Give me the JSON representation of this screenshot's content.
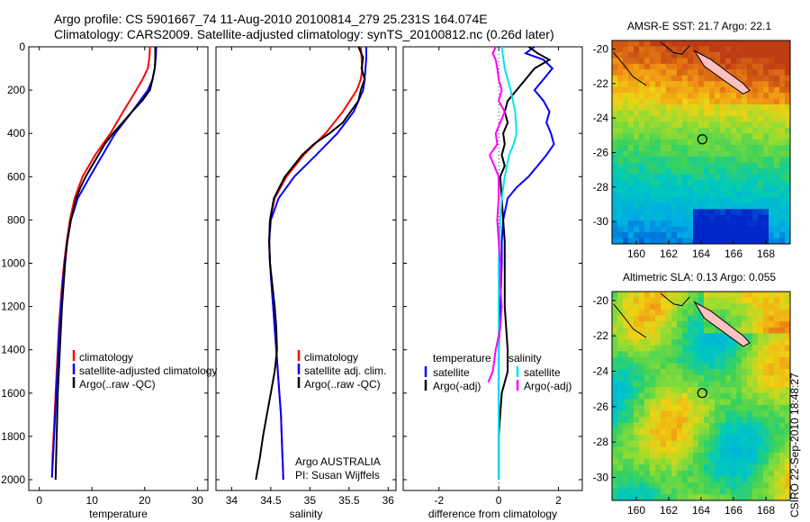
{
  "header": {
    "line1": "Argo profile: CS 5901667_74 11-Aug-2010 20100814_279 25.231S 164.074E",
    "line2": "Climatology: CARS2009. Satellite-adjusted climatology: synTS_20100812.nc (0.26d later)"
  },
  "footer": {
    "credit": "CSIRO 22-Sep-2010 18:48:27"
  },
  "colors": {
    "climatology": "#ff0000",
    "satellite": "#0000ff",
    "argo": "#000000",
    "salinity_sat": "#00e5ee",
    "salinity_argo": "#ff00ff"
  },
  "chart_data": [
    {
      "type": "line",
      "xlabel": "temperature",
      "ylabel": "",
      "xlim": [
        -2,
        32
      ],
      "ylim": [
        2050,
        0
      ],
      "xticks": [
        0,
        10,
        20,
        30
      ],
      "yticks": [
        0,
        200,
        400,
        600,
        800,
        1000,
        1200,
        1400,
        1600,
        1800,
        2000
      ],
      "legend": [
        "climatology",
        "satellite-adjusted climatology",
        "Argo(..raw -QC)"
      ],
      "series": [
        {
          "name": "climatology",
          "color": "#ff0000",
          "depth": [
            0,
            50,
            100,
            150,
            200,
            300,
            400,
            500,
            600,
            700,
            800,
            900,
            1000,
            1100,
            1200,
            1300,
            1400,
            1500,
            1600,
            1700,
            1800,
            1900,
            1990
          ],
          "values": [
            21.0,
            20.9,
            20.6,
            19.6,
            18.4,
            15.9,
            13.5,
            10.6,
            8.2,
            6.7,
            5.8,
            5.2,
            4.7,
            4.3,
            4.0,
            3.7,
            3.5,
            3.3,
            3.1,
            2.9,
            2.7,
            2.5,
            2.4
          ]
        },
        {
          "name": "satellite-adjusted climatology",
          "color": "#0000ff",
          "depth": [
            0,
            50,
            100,
            150,
            200,
            300,
            400,
            500,
            600,
            700,
            800,
            900,
            1000,
            1100,
            1200,
            1300,
            1400,
            1500,
            1600,
            1700,
            1800,
            1900,
            1990
          ],
          "values": [
            22.2,
            22.1,
            21.9,
            21.5,
            20.6,
            17.6,
            14.4,
            12.0,
            9.6,
            7.3,
            6.0,
            5.3,
            4.8,
            4.4,
            4.1,
            3.8,
            3.6,
            3.4,
            3.2,
            3.0,
            2.8,
            2.6,
            2.4
          ]
        },
        {
          "name": "Argo(..raw -QC)",
          "color": "#000000",
          "depth": [
            0,
            30,
            60,
            100,
            150,
            200,
            250,
            300,
            350,
            400,
            450,
            500,
            550,
            600,
            650,
            700,
            800,
            900,
            1000,
            1100,
            1200,
            1300,
            1400,
            1500,
            1600,
            1700,
            1800,
            1900,
            2000
          ],
          "values": [
            22.0,
            22.0,
            22.0,
            21.9,
            21.5,
            21.0,
            19.5,
            17.6,
            15.8,
            14.0,
            12.4,
            11.2,
            10.0,
            8.8,
            7.8,
            7.0,
            6.0,
            5.3,
            4.9,
            4.6,
            4.3,
            4.1,
            3.9,
            3.7,
            3.5,
            3.4,
            3.3,
            3.2,
            3.1
          ]
        }
      ]
    },
    {
      "type": "line",
      "xlabel": "salinity",
      "xlim": [
        33.8,
        36.1
      ],
      "ylim": [
        2050,
        0
      ],
      "xticks": [
        34,
        34.5,
        35,
        35.5,
        36
      ],
      "legend": [
        "climatology",
        "satellite adj. clim.",
        "Argo(..raw -QC)"
      ],
      "annotation": [
        "Argo AUSTRALIA",
        "PI: Susan Wijffels"
      ],
      "series": [
        {
          "name": "climatology",
          "color": "#ff0000",
          "depth": [
            0,
            50,
            100,
            150,
            200,
            300,
            400,
            500,
            600,
            700,
            800,
            900,
            1000,
            1100,
            1200,
            1300,
            1400,
            1500,
            1600,
            1700,
            1800,
            1900,
            2000
          ],
          "values": [
            35.65,
            35.66,
            35.67,
            35.65,
            35.6,
            35.42,
            35.2,
            34.92,
            34.7,
            34.55,
            34.49,
            34.48,
            34.49,
            34.51,
            34.53,
            34.55,
            34.57,
            34.59,
            34.61,
            34.63,
            34.64,
            34.65,
            34.66
          ]
        },
        {
          "name": "satellite adj. clim.",
          "color": "#0000ff",
          "depth": [
            0,
            50,
            100,
            150,
            200,
            300,
            400,
            500,
            600,
            700,
            800,
            900,
            1000,
            1100,
            1200,
            1300,
            1400,
            1500,
            1600,
            1700,
            1800,
            1900,
            2000
          ],
          "values": [
            35.72,
            35.72,
            35.71,
            35.7,
            35.68,
            35.56,
            35.35,
            35.08,
            34.8,
            34.6,
            34.5,
            34.48,
            34.49,
            34.51,
            34.53,
            34.55,
            34.57,
            34.59,
            34.61,
            34.63,
            34.64,
            34.65,
            34.66
          ]
        },
        {
          "name": "Argo(..raw -QC)",
          "color": "#000000",
          "depth": [
            0,
            50,
            100,
            150,
            200,
            250,
            300,
            350,
            400,
            450,
            500,
            600,
            700,
            800,
            900,
            1000,
            1100,
            1200,
            1300,
            1400,
            1500,
            1600,
            1700,
            1800,
            1900,
            2000
          ],
          "values": [
            35.62,
            35.68,
            35.66,
            35.7,
            35.65,
            35.62,
            35.52,
            35.42,
            35.25,
            35.05,
            34.9,
            34.68,
            34.54,
            34.49,
            34.48,
            34.49,
            34.52,
            34.55,
            34.57,
            34.58,
            34.55,
            34.5,
            34.45,
            34.4,
            34.36,
            34.31
          ]
        }
      ]
    },
    {
      "type": "line",
      "xlabel": "difference from climatology",
      "xlim": [
        -3.2,
        2.8
      ],
      "ylim": [
        2050,
        0
      ],
      "xticks": [
        -2,
        0,
        2
      ],
      "legend_temperature": {
        "title": "temperature",
        "items": [
          "satellite",
          "Argo(-adj)"
        ]
      },
      "legend_salinity": {
        "title": "salinity",
        "items": [
          "satellite",
          "Argo(-adj)"
        ]
      },
      "series": [
        {
          "name": "temperature satellite",
          "color": "#0000ff",
          "depth": [
            0,
            30,
            60,
            100,
            150,
            200,
            250,
            300,
            350,
            400,
            450,
            500,
            550,
            600,
            650,
            700,
            800,
            900,
            1000,
            1200,
            1400,
            1600,
            1800,
            2000
          ],
          "values": [
            1.2,
            0.9,
            1.5,
            1.8,
            1.5,
            1.2,
            1.5,
            1.7,
            1.6,
            1.75,
            1.85,
            1.6,
            1.3,
            1.0,
            0.6,
            0.3,
            0.15,
            0.1,
            0.1,
            0.05,
            0.0,
            0.0,
            0.0,
            0.0
          ]
        },
        {
          "name": "temperature Argo(-adj)",
          "color": "#000000",
          "depth": [
            0,
            30,
            60,
            100,
            150,
            200,
            250,
            300,
            350,
            400,
            450,
            500,
            550,
            600,
            700,
            800,
            900,
            1000,
            1200,
            1400,
            1500,
            1600,
            1800,
            2000
          ],
          "values": [
            1.0,
            1.3,
            1.7,
            1.2,
            0.9,
            0.6,
            0.3,
            0.2,
            0.3,
            0.15,
            0.2,
            0.1,
            0.2,
            0.05,
            0.1,
            0.15,
            0.2,
            0.2,
            0.2,
            0.3,
            0.3,
            0.1,
            0.0,
            0.0
          ]
        },
        {
          "name": "salinity satellite",
          "color": "#00e5ee",
          "depth": [
            0,
            50,
            100,
            150,
            200,
            300,
            400,
            450,
            500,
            600,
            700,
            800,
            1000,
            1200,
            1400,
            1600,
            1800,
            2000
          ],
          "values": [
            0.1,
            0.15,
            0.2,
            0.3,
            0.4,
            0.55,
            0.6,
            0.5,
            0.35,
            0.2,
            0.1,
            0.05,
            0.0,
            0.0,
            0.0,
            0.0,
            0.0,
            0.0
          ]
        },
        {
          "name": "salinity Argo(-adj)",
          "color": "#ff00ff",
          "depth": [
            0,
            30,
            60,
            100,
            150,
            200,
            250,
            300,
            350,
            400,
            450,
            500,
            600,
            700,
            800,
            900,
            1000,
            1100,
            1200,
            1300,
            1400,
            1500,
            1550
          ],
          "values": [
            -0.1,
            -0.2,
            -0.1,
            -0.05,
            0.0,
            0.1,
            0.0,
            0.2,
            0.05,
            -0.1,
            -0.05,
            -0.3,
            0.0,
            0.0,
            -0.05,
            0.0,
            0.05,
            0.05,
            0.1,
            0.05,
            -0.1,
            -0.2,
            -0.35
          ]
        }
      ]
    },
    {
      "type": "heatmap",
      "title": "AMSR-E SST: 21.7 Argo: 22.1",
      "xlim": [
        158.5,
        169.5
      ],
      "ylim": [
        -31.3,
        -19.5
      ],
      "xticks": [
        160,
        162,
        164,
        166,
        168
      ],
      "yticks": [
        -20,
        -22,
        -24,
        -26,
        -28,
        -30
      ],
      "marker": {
        "lon": 164.074,
        "lat": -25.231
      }
    },
    {
      "type": "heatmap",
      "title": "Altimetric SLA: 0.13 Argo: 0.055",
      "xlim": [
        158.5,
        169.5
      ],
      "ylim": [
        -31.3,
        -19.5
      ],
      "xticks": [
        160,
        162,
        164,
        166,
        168
      ],
      "yticks": [
        -20,
        -22,
        -24,
        -26,
        -28,
        -30
      ],
      "marker": {
        "lon": 164.074,
        "lat": -25.231
      }
    }
  ]
}
